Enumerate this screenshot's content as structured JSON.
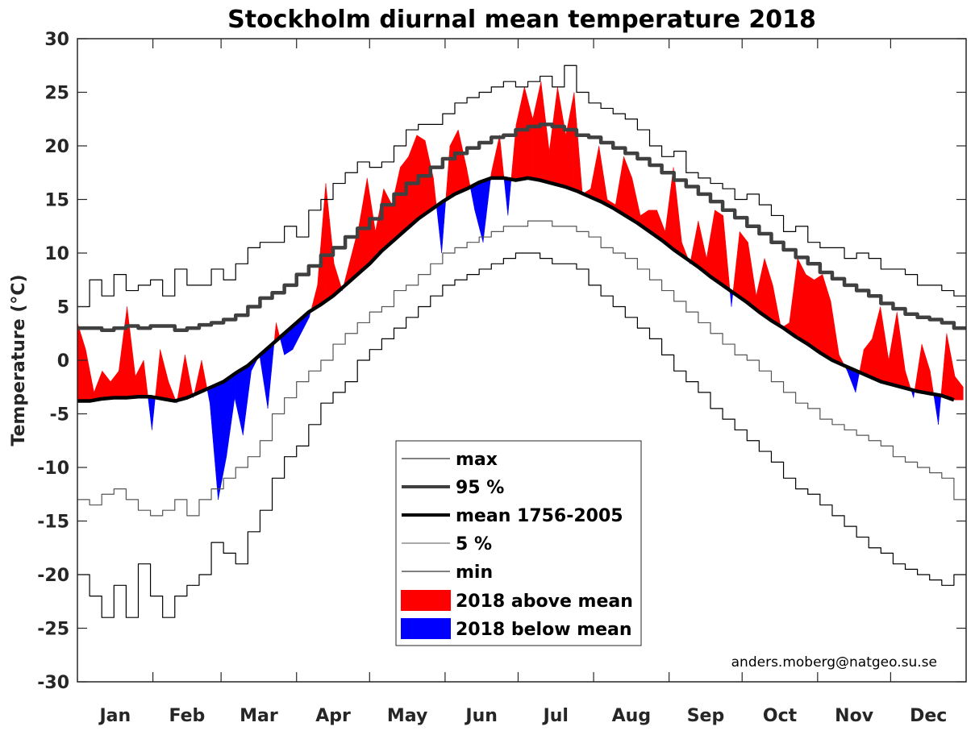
{
  "chart_data": {
    "type": "line",
    "title": "Stockholm diurnal mean temperature 2018",
    "xlabel": "",
    "ylabel": "Temperature (°C)",
    "ylim": [
      -30,
      30
    ],
    "yticks": [
      30,
      25,
      20,
      15,
      10,
      5,
      0,
      -5,
      -10,
      -15,
      -20,
      -25,
      -30
    ],
    "ytick_labels": [
      "30",
      "25",
      "20",
      "15",
      "10",
      "5",
      "0",
      "-5",
      "-10",
      "-15",
      "-20",
      "-25",
      "-30"
    ],
    "xlim_day_of_year": [
      1,
      365
    ],
    "month_labels": [
      "Jan",
      "Feb",
      "Mar",
      "Apr",
      "May",
      "Jun",
      "Jul",
      "Aug",
      "Sep",
      "Oct",
      "Nov",
      "Dec"
    ],
    "month_start_days": [
      1,
      32,
      60,
      91,
      121,
      152,
      182,
      213,
      244,
      274,
      305,
      335,
      366
    ],
    "grid": false,
    "legend_position": "lower-center",
    "credit": "anders.moberg@natgeo.su.se",
    "x_step_days": 5,
    "x_start_day": 1,
    "series": [
      {
        "name": "max",
        "legend_label": "max",
        "style": "thin-step",
        "color": "#000000",
        "values": [
          5.0,
          7.5,
          6.0,
          8.0,
          6.5,
          7.0,
          7.5,
          6.0,
          8.5,
          7.0,
          7.0,
          8.5,
          7.5,
          9.0,
          10.5,
          11.0,
          11.0,
          12.5,
          11.5,
          14.0,
          15.0,
          16.5,
          17.5,
          18.5,
          18.0,
          18.5,
          20.0,
          21.5,
          22.0,
          22.0,
          23.0,
          24.0,
          24.5,
          25.0,
          25.5,
          26.0,
          25.5,
          26.0,
          26.5,
          25.5,
          27.5,
          25.0,
          24.0,
          23.5,
          23.0,
          22.5,
          21.5,
          20.0,
          19.0,
          19.5,
          17.5,
          17.0,
          16.5,
          16.0,
          15.0,
          15.5,
          14.5,
          13.5,
          12.0,
          12.5,
          11.0,
          10.5,
          10.5,
          9.5,
          10.0,
          9.5,
          8.5,
          8.5,
          8.0,
          7.0,
          7.0,
          6.5,
          6.0
        ]
      },
      {
        "name": "95%",
        "legend_label": "95 %",
        "style": "thick-step",
        "color": "#404040",
        "values": [
          3.0,
          3.0,
          2.8,
          3.0,
          3.2,
          3.0,
          3.2,
          3.2,
          2.8,
          3.0,
          3.3,
          3.5,
          3.8,
          4.2,
          5.0,
          5.8,
          6.3,
          7.0,
          8.0,
          8.8,
          9.8,
          10.5,
          11.5,
          12.3,
          13.2,
          14.5,
          15.5,
          16.5,
          17.2,
          18.0,
          18.8,
          19.3,
          19.8,
          20.3,
          20.8,
          21.0,
          21.5,
          21.8,
          22.0,
          21.8,
          21.5,
          21.0,
          20.8,
          20.3,
          19.8,
          19.3,
          18.8,
          18.2,
          17.5,
          16.8,
          16.2,
          15.5,
          14.8,
          14.0,
          13.3,
          12.5,
          11.8,
          11.0,
          10.3,
          9.6,
          9.0,
          8.2,
          7.6,
          7.0,
          6.5,
          6.0,
          5.3,
          4.8,
          4.3,
          4.0,
          3.8,
          3.5,
          3.0
        ]
      },
      {
        "name": "mean 1756-2005",
        "legend_label": "mean 1756-2005",
        "style": "thick",
        "color": "#000000",
        "values": [
          -3.8,
          -3.8,
          -3.6,
          -3.5,
          -3.5,
          -3.4,
          -3.4,
          -3.6,
          -3.8,
          -3.5,
          -3.0,
          -2.5,
          -2.0,
          -1.2,
          -0.5,
          0.5,
          1.5,
          2.5,
          3.5,
          4.5,
          5.2,
          6.0,
          7.0,
          8.0,
          9.0,
          10.2,
          11.2,
          12.2,
          13.2,
          14.0,
          14.8,
          15.5,
          16.0,
          16.6,
          17.0,
          17.0,
          16.8,
          17.0,
          16.8,
          16.5,
          16.2,
          15.8,
          15.3,
          14.8,
          14.2,
          13.5,
          12.8,
          12.0,
          11.2,
          10.3,
          9.5,
          8.7,
          7.8,
          7.0,
          6.2,
          5.4,
          4.5,
          3.7,
          3.0,
          2.2,
          1.5,
          0.7,
          0.0,
          -0.5,
          -1.0,
          -1.5,
          -2.0,
          -2.3,
          -2.6,
          -2.9,
          -3.1,
          -3.3,
          -3.7
        ]
      },
      {
        "name": "5%",
        "legend_label": "5 %",
        "style": "thin-step",
        "color": "#555555",
        "values": [
          -13.0,
          -13.5,
          -12.5,
          -12.0,
          -13.0,
          -14.0,
          -14.5,
          -14.0,
          -13.0,
          -14.5,
          -13.0,
          -12.0,
          -11.0,
          -10.0,
          -9.0,
          -7.5,
          -5.0,
          -3.5,
          -2.0,
          -1.0,
          0.0,
          1.5,
          2.5,
          3.5,
          4.5,
          5.0,
          6.5,
          7.0,
          8.0,
          9.0,
          10.0,
          10.5,
          11.0,
          11.5,
          12.0,
          12.5,
          12.5,
          13.0,
          13.0,
          12.5,
          12.5,
          12.0,
          11.5,
          10.5,
          10.0,
          9.5,
          8.5,
          7.5,
          6.5,
          5.5,
          4.5,
          3.5,
          2.5,
          1.5,
          0.5,
          0.0,
          -1.0,
          -2.0,
          -3.0,
          -4.0,
          -4.5,
          -5.5,
          -6.0,
          -6.5,
          -7.0,
          -7.5,
          -8.0,
          -9.0,
          -9.5,
          -10.0,
          -10.5,
          -11.0,
          -13.0
        ]
      },
      {
        "name": "min",
        "legend_label": "min",
        "style": "thin-step",
        "color": "#000000",
        "values": [
          -20.0,
          -22.0,
          -24.0,
          -21.0,
          -24.0,
          -19.0,
          -22.0,
          -24.0,
          -22.0,
          -21.0,
          -20.0,
          -17.0,
          -18.0,
          -19.0,
          -16.0,
          -14.0,
          -11.0,
          -9.0,
          -8.0,
          -6.0,
          -4.0,
          -3.0,
          -2.0,
          0.0,
          1.0,
          2.0,
          3.0,
          4.0,
          5.0,
          6.0,
          7.0,
          7.5,
          8.0,
          8.5,
          9.0,
          9.5,
          10.0,
          10.0,
          9.5,
          9.0,
          9.0,
          8.5,
          7.0,
          6.0,
          5.0,
          4.0,
          3.0,
          2.0,
          0.5,
          -1.0,
          -2.0,
          -3.0,
          -4.5,
          -5.5,
          -6.5,
          -7.5,
          -8.5,
          -9.5,
          -11.0,
          -12.0,
          -12.5,
          -13.5,
          -14.5,
          -15.5,
          -16.5,
          -17.5,
          -18.0,
          -19.0,
          -19.5,
          -20.0,
          -20.5,
          -21.0,
          -20.0
        ]
      },
      {
        "name": "2018",
        "legend_label_above": "2018 above mean",
        "legend_label_below": "2018 below mean",
        "style": "fill-vs-mean",
        "color_above": "#ff0000",
        "color_below": "#0000ff",
        "values": [
          3.5,
          1.0,
          -3.0,
          -1.0,
          -2.0,
          -1.0,
          5.0,
          -1.5,
          0.0,
          -6.5,
          1.0,
          -2.0,
          -4.0,
          0.5,
          -3.5,
          0.0,
          -4.0,
          -13.0,
          -9.0,
          -3.5,
          -7.0,
          -1.0,
          0.5,
          -4.5,
          3.5,
          0.5,
          1.0,
          2.5,
          4.0,
          7.0,
          16.5,
          9.0,
          6.5,
          9.5,
          12.5,
          17.0,
          12.0,
          16.0,
          14.5,
          18.0,
          19.0,
          21.0,
          20.5,
          17.0,
          10.0,
          20.0,
          21.5,
          18.0,
          14.0,
          11.0,
          17.5,
          21.0,
          13.5,
          22.0,
          25.5,
          22.5,
          26.0,
          19.5,
          25.5,
          21.0,
          25.0,
          15.5,
          16.0,
          20.0,
          15.0,
          14.5,
          19.0,
          17.0,
          13.5,
          14.0,
          14.0,
          12.0,
          18.0,
          11.0,
          9.0,
          13.0,
          9.5,
          14.0,
          13.5,
          5.0,
          12.0,
          11.0,
          6.0,
          9.5,
          7.0,
          3.0,
          3.5,
          9.5,
          8.0,
          7.5,
          8.0,
          5.5,
          0.5,
          -1.0,
          -3.0,
          1.0,
          2.0,
          5.0,
          0.0,
          4.5,
          -1.0,
          -3.5,
          1.5,
          -1.0,
          -6.0,
          2.5,
          -1.5,
          -2.5
        ],
        "x_step_days_override": 3.4
      }
    ]
  }
}
